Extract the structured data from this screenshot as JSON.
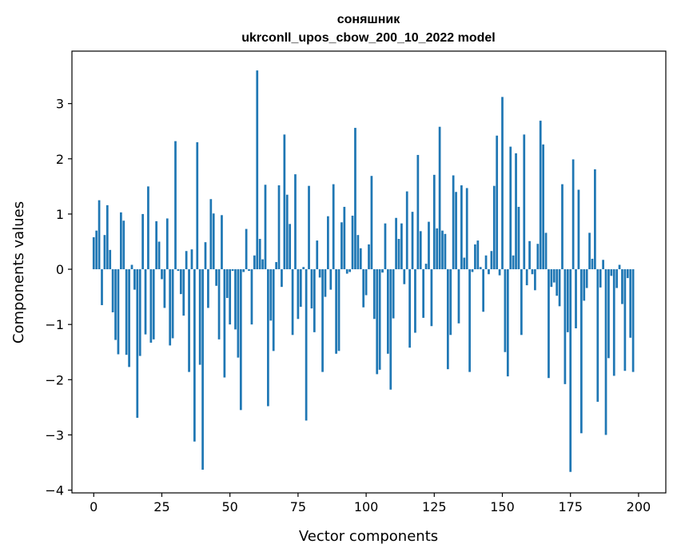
{
  "chart_data": {
    "type": "bar",
    "title": "соняшник",
    "subtitle": "ukrconll_upos_cbow_200_10_2022 model",
    "xlabel": "Vector components",
    "ylabel": "Components values",
    "xlim": [
      -8,
      210
    ],
    "ylim": [
      -4.05,
      3.95
    ],
    "x_ticks": [
      0,
      25,
      50,
      75,
      100,
      125,
      150,
      175,
      200
    ],
    "x_tick_labels": [
      "0",
      "25",
      "50",
      "75",
      "100",
      "125",
      "150",
      "175",
      "200"
    ],
    "y_ticks": [
      -4,
      -3,
      -2,
      -1,
      0,
      1,
      2,
      3
    ],
    "y_tick_labels": [
      "−4",
      "−3",
      "−2",
      "−1",
      "0",
      "1",
      "2",
      "3"
    ],
    "bar_color": "#1f77b4",
    "grid": false,
    "values": [
      0.58,
      0.7,
      1.25,
      -0.65,
      0.62,
      1.16,
      0.35,
      -0.78,
      -1.28,
      -1.54,
      1.03,
      0.88,
      -1.55,
      -1.77,
      0.08,
      -0.37,
      -2.69,
      -1.57,
      1.0,
      -1.18,
      1.5,
      -1.33,
      -1.27,
      0.87,
      0.5,
      -0.18,
      -0.7,
      0.92,
      -1.38,
      -1.25,
      2.32,
      -0.03,
      -0.45,
      -0.84,
      0.33,
      -1.86,
      0.36,
      -3.12,
      2.3,
      -1.73,
      -3.63,
      0.49,
      -0.7,
      1.27,
      1.01,
      -0.3,
      -1.27,
      0.98,
      -1.96,
      -0.52,
      -1.0,
      -0.03,
      -1.09,
      -1.6,
      -2.55,
      -0.05,
      0.73,
      -0.03,
      -1.0,
      0.25,
      3.6,
      0.55,
      0.18,
      1.53,
      -2.48,
      -0.93,
      -1.48,
      0.13,
      1.52,
      -0.32,
      2.44,
      1.35,
      0.82,
      -1.19,
      1.72,
      -0.9,
      -0.68,
      0.04,
      -2.74,
      1.51,
      -0.71,
      -1.14,
      0.52,
      -0.15,
      -1.86,
      -0.5,
      0.96,
      -0.37,
      1.54,
      -1.53,
      -1.48,
      0.85,
      1.13,
      -0.08,
      -0.05,
      0.97,
      2.56,
      0.62,
      0.38,
      -0.69,
      -0.47,
      0.45,
      1.69,
      -0.9,
      -1.9,
      -1.82,
      -0.06,
      0.83,
      -1.53,
      -2.18,
      -0.89,
      0.93,
      0.55,
      0.83,
      -0.27,
      1.41,
      -1.42,
      1.04,
      -1.15,
      2.07,
      0.69,
      -0.88,
      0.1,
      0.86,
      -1.03,
      1.71,
      0.74,
      2.58,
      0.7,
      0.64,
      -1.81,
      -1.19,
      1.7,
      1.4,
      -0.98,
      1.52,
      0.21,
      1.47,
      -1.86,
      -0.05,
      0.45,
      0.52,
      0.04,
      -0.77,
      0.25,
      -0.09,
      0.33,
      1.51,
      2.42,
      -0.11,
      3.12,
      -1.5,
      -1.94,
      2.22,
      0.25,
      2.1,
      1.13,
      -1.19,
      2.44,
      -0.29,
      0.51,
      -0.09,
      -0.38,
      0.46,
      2.69,
      2.26,
      0.66,
      -1.97,
      -0.32,
      -0.24,
      -0.48,
      -0.67,
      1.54,
      -2.08,
      -1.14,
      -3.67,
      1.99,
      -1.07,
      1.44,
      -2.97,
      -0.57,
      -0.34,
      0.66,
      0.19,
      1.81,
      -2.4,
      -0.33,
      0.17,
      -3.0,
      -1.61,
      -0.12,
      -1.93,
      -0.34,
      0.08,
      -0.63,
      -1.84,
      -0.16,
      -1.24,
      -1.86
    ]
  }
}
